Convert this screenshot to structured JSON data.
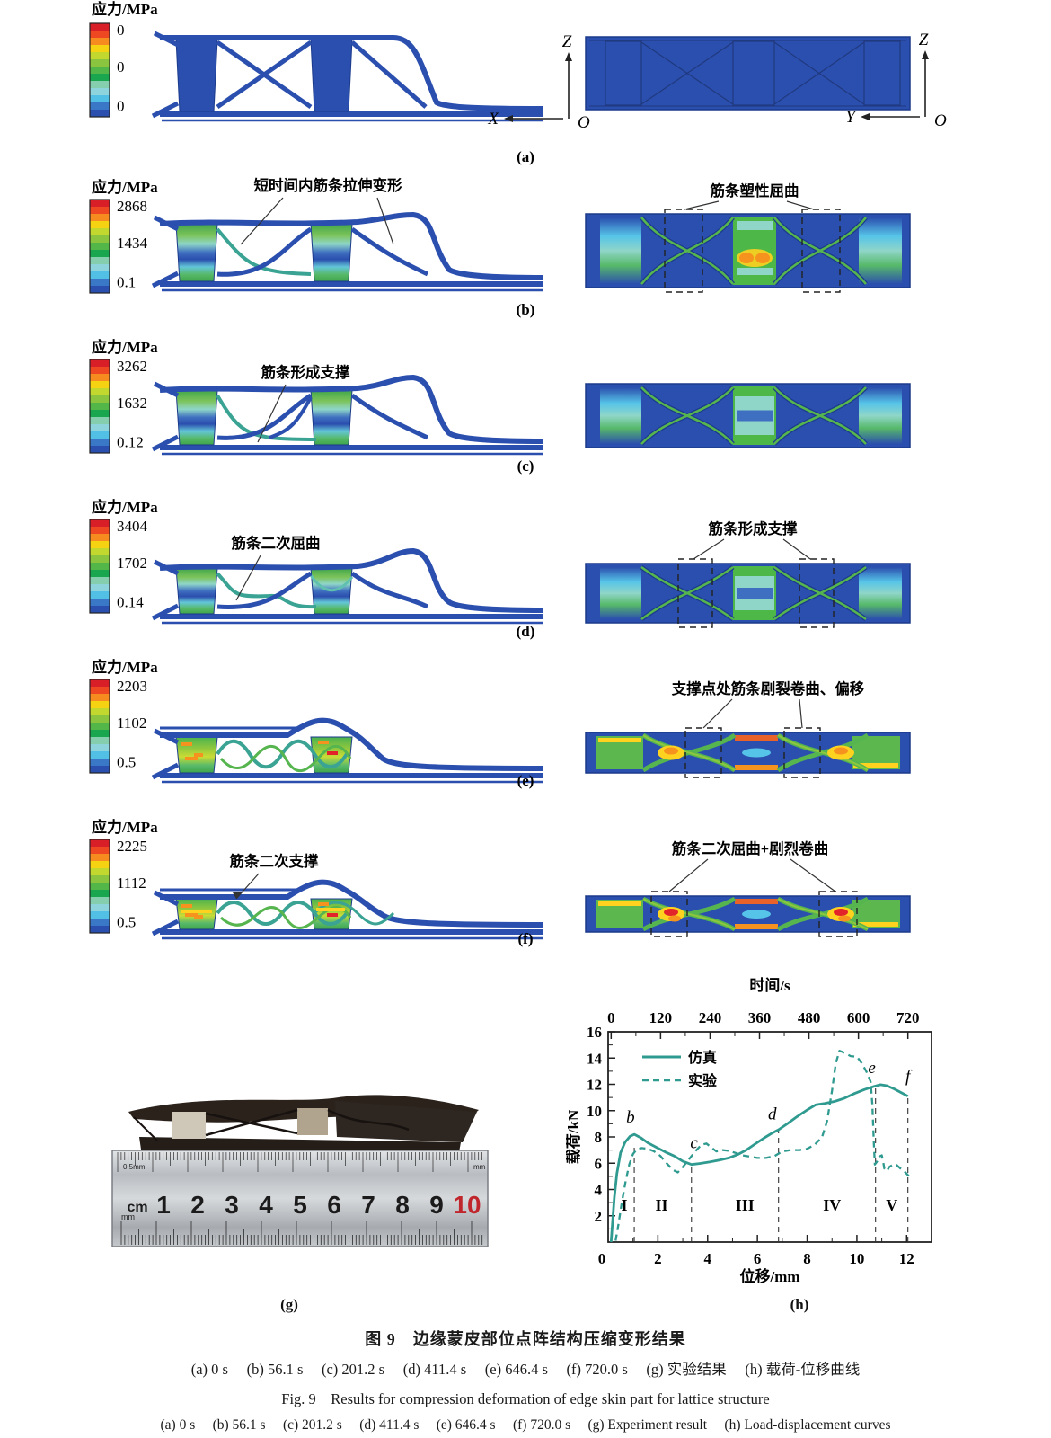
{
  "colorbar": {
    "title": "应力/MPa"
  },
  "rows": [
    {
      "name": "a",
      "label": "(a)",
      "cb": {
        "max": "0",
        "mid": "0",
        "min": "0"
      },
      "left_annotation": "",
      "right_annotation": ""
    },
    {
      "name": "b",
      "label": "(b)",
      "cb": {
        "max": "2868",
        "mid": "1434",
        "min": "0.1"
      },
      "left_annotation": "短时间内筋条拉伸变形",
      "right_annotation": "筋条塑性屈曲"
    },
    {
      "name": "c",
      "label": "(c)",
      "cb": {
        "max": "3262",
        "mid": "1632",
        "min": "0.12"
      },
      "left_annotation": "筋条形成支撑",
      "right_annotation": ""
    },
    {
      "name": "d",
      "label": "(d)",
      "cb": {
        "max": "3404",
        "mid": "1702",
        "min": "0.14"
      },
      "left_annotation": "筋条二次屈曲",
      "right_annotation": "筋条形成支撑"
    },
    {
      "name": "e",
      "label": "(e)",
      "cb": {
        "max": "2203",
        "mid": "1102",
        "min": "0.5"
      },
      "left_annotation": "",
      "right_annotation": "支撑点处筋条剧裂卷曲、偏移"
    },
    {
      "name": "f",
      "label": "(f)",
      "cb": {
        "max": "2225",
        "mid": "1112",
        "min": "0.5"
      },
      "left_annotation": "筋条二次支撑",
      "right_annotation": "筋条二次屈曲+剧烈卷曲"
    }
  ],
  "axes_triads": {
    "left": {
      "v": "Z",
      "h": "X",
      "o": "O"
    },
    "right": {
      "v": "Z",
      "h": "Y",
      "o": "O"
    }
  },
  "photo": {
    "ruler_unit": "cm",
    "ruler_numbers": [
      "1",
      "2",
      "3",
      "4",
      "5",
      "6",
      "7",
      "8",
      "9",
      "10"
    ],
    "ruler_top_left": "0.5mm",
    "ruler_mm_right": "mm",
    "ruler_mm_left": "mm"
  },
  "chart_data": {
    "type": "line",
    "top_axis": {
      "label": "时间/s",
      "ticks": [
        "0",
        "120",
        "240",
        "360",
        "480",
        "600",
        "720"
      ],
      "tick_values": [
        0,
        120,
        240,
        360,
        480,
        600,
        720
      ],
      "range_s": [
        0,
        720
      ]
    },
    "xlabel": "位移/mm",
    "ylabel": "载荷/kN",
    "xlim": [
      0,
      13
    ],
    "ylim": [
      0,
      16
    ],
    "x_ticks": [
      2,
      4,
      6,
      8,
      10,
      12
    ],
    "y_ticks": [
      2,
      4,
      6,
      8,
      10,
      12,
      14,
      16
    ],
    "origin_label": "0",
    "line_color": "#2f9a8f",
    "grid": false,
    "legend": {
      "position": "top-left",
      "items": [
        {
          "label": "仿真",
          "style": "solid"
        },
        {
          "label": "实验",
          "style": "dashed"
        }
      ]
    },
    "series": [
      {
        "name": "仿真",
        "style": "solid",
        "points": [
          [
            0.12,
            0
          ],
          [
            0.18,
            1.6
          ],
          [
            0.25,
            3.4
          ],
          [
            0.35,
            5.2
          ],
          [
            0.5,
            6.8
          ],
          [
            0.68,
            7.6
          ],
          [
            0.88,
            8.05
          ],
          [
            1.05,
            8.2
          ],
          [
            1.3,
            7.95
          ],
          [
            1.6,
            7.55
          ],
          [
            1.95,
            7.2
          ],
          [
            2.3,
            6.85
          ],
          [
            2.65,
            6.55
          ],
          [
            3.0,
            6.15
          ],
          [
            3.35,
            5.9
          ],
          [
            3.7,
            5.98
          ],
          [
            4.1,
            6.1
          ],
          [
            4.5,
            6.25
          ],
          [
            4.85,
            6.4
          ],
          [
            5.2,
            6.65
          ],
          [
            5.55,
            7.0
          ],
          [
            5.9,
            7.45
          ],
          [
            6.25,
            7.9
          ],
          [
            6.6,
            8.3
          ],
          [
            6.85,
            8.55
          ],
          [
            7.2,
            9.0
          ],
          [
            7.6,
            9.55
          ],
          [
            8.0,
            10.05
          ],
          [
            8.35,
            10.45
          ],
          [
            8.7,
            10.55
          ],
          [
            9.1,
            10.7
          ],
          [
            9.5,
            10.95
          ],
          [
            9.9,
            11.3
          ],
          [
            10.3,
            11.6
          ],
          [
            10.7,
            11.85
          ],
          [
            10.95,
            11.97
          ],
          [
            11.2,
            11.9
          ],
          [
            11.5,
            11.65
          ],
          [
            11.8,
            11.35
          ],
          [
            12.05,
            11.1
          ]
        ]
      },
      {
        "name": "实验",
        "style": "dashed",
        "points": [
          [
            0.3,
            0.1
          ],
          [
            0.42,
            1.4
          ],
          [
            0.55,
            3.0
          ],
          [
            0.7,
            4.6
          ],
          [
            0.85,
            5.9
          ],
          [
            1.0,
            6.7
          ],
          [
            1.15,
            7.05
          ],
          [
            1.35,
            7.15
          ],
          [
            1.6,
            7.1
          ],
          [
            1.85,
            6.9
          ],
          [
            2.1,
            6.55
          ],
          [
            2.35,
            6.0
          ],
          [
            2.6,
            5.5
          ],
          [
            2.8,
            5.3
          ],
          [
            3.0,
            5.7
          ],
          [
            3.25,
            6.3
          ],
          [
            3.5,
            6.9
          ],
          [
            3.75,
            7.4
          ],
          [
            3.95,
            7.5
          ],
          [
            4.15,
            7.2
          ],
          [
            4.35,
            6.9
          ],
          [
            4.6,
            7.0
          ],
          [
            4.85,
            6.95
          ],
          [
            5.1,
            6.8
          ],
          [
            5.4,
            6.6
          ],
          [
            5.7,
            6.5
          ],
          [
            6.0,
            6.4
          ],
          [
            6.35,
            6.4
          ],
          [
            6.7,
            6.55
          ],
          [
            7.0,
            6.9
          ],
          [
            7.35,
            7.0
          ],
          [
            7.7,
            7.0
          ],
          [
            8.0,
            7.1
          ],
          [
            8.3,
            7.4
          ],
          [
            8.6,
            8.0
          ],
          [
            8.8,
            9.2
          ],
          [
            9.0,
            11.5
          ],
          [
            9.15,
            13.6
          ],
          [
            9.3,
            14.55
          ],
          [
            9.5,
            14.4
          ],
          [
            9.75,
            14.15
          ],
          [
            10.0,
            14.1
          ],
          [
            10.2,
            13.6
          ],
          [
            10.4,
            12.9
          ],
          [
            10.55,
            12.2
          ],
          [
            10.62,
            10.5
          ],
          [
            10.68,
            7.5
          ],
          [
            10.72,
            5.9
          ],
          [
            10.8,
            6.1
          ],
          [
            10.9,
            6.5
          ],
          [
            11.0,
            6.6
          ],
          [
            11.05,
            6.2
          ],
          [
            11.1,
            5.6
          ],
          [
            11.2,
            5.4
          ],
          [
            11.3,
            5.7
          ],
          [
            11.45,
            5.9
          ],
          [
            11.6,
            5.85
          ],
          [
            11.75,
            5.6
          ],
          [
            11.9,
            5.4
          ],
          [
            12.05,
            5.1
          ],
          [
            12.15,
            4.85
          ]
        ]
      }
    ],
    "stage_labels": [
      {
        "text": "I",
        "x": 0.65,
        "y": 2.4
      },
      {
        "text": "II",
        "x": 2.15,
        "y": 2.4
      },
      {
        "text": "III",
        "x": 5.5,
        "y": 2.4
      },
      {
        "text": "IV",
        "x": 9.0,
        "y": 2.4
      },
      {
        "text": "V",
        "x": 11.4,
        "y": 2.4
      }
    ],
    "point_labels": [
      {
        "text": "b",
        "x": 0.9,
        "y": 9.1
      },
      {
        "text": "c",
        "x": 3.45,
        "y": 7.15
      },
      {
        "text": "d",
        "x": 6.6,
        "y": 9.35
      },
      {
        "text": "e",
        "x": 10.6,
        "y": 12.85
      },
      {
        "text": "f",
        "x": 12.05,
        "y": 12.2
      }
    ],
    "vlines": [
      {
        "x": 1.05,
        "y_top": 7.2
      },
      {
        "x": 3.35,
        "y_top": 5.9
      },
      {
        "x": 6.85,
        "y_top": 8.45
      },
      {
        "x": 10.75,
        "y_top": 11.9
      },
      {
        "x": 12.05,
        "y_top": 11.0
      }
    ]
  },
  "figure_captions": {
    "g_label": "(g)",
    "h_label": "(h)",
    "cn_title": "图 9　边缘蒙皮部位点阵结构压缩变形结果",
    "cn_sub": "(a) 0 s　 (b) 56.1 s　 (c) 201.2 s　 (d) 411.4 s　 (e) 646.4 s　 (f) 720.0 s　 (g) 实验结果　 (h) 载荷-位移曲线",
    "en_title": "Fig. 9　Results for compression deformation of edge skin part for lattice structure",
    "en_sub": "(a) 0 s　 (b) 56.1 s　 (c) 201.2 s　 (d) 411.4 s　 (e) 646.4 s　 (f) 720.0 s　 (g) Experiment result　 (h) Load-displacement curves"
  }
}
